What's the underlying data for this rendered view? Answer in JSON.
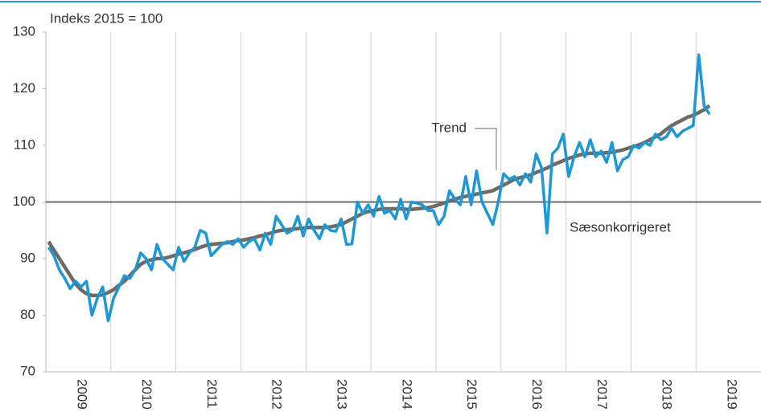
{
  "chart_data": {
    "type": "line",
    "subtitle": "Indeks 2015 = 100",
    "categories": [
      null,
      null,
      null,
      null,
      null,
      null,
      "2009",
      null,
      null,
      null,
      null,
      null,
      null,
      null,
      null,
      null,
      null,
      null,
      "2010",
      null,
      null,
      null,
      null,
      null,
      null,
      null,
      null,
      null,
      null,
      null,
      "2011",
      null,
      null,
      null,
      null,
      null,
      null,
      null,
      null,
      null,
      null,
      null,
      "2012",
      null,
      null,
      null,
      null,
      null,
      null,
      null,
      null,
      null,
      null,
      null,
      "2013",
      null,
      null,
      null,
      null,
      null,
      null,
      null,
      null,
      null,
      null,
      null,
      "2014",
      null,
      null,
      null,
      null,
      null,
      null,
      null,
      null,
      null,
      null,
      null,
      "2015",
      null,
      null,
      null,
      null,
      null,
      null,
      null,
      null,
      null,
      null,
      null,
      "2016",
      null,
      null,
      null,
      null,
      null,
      null,
      null,
      null,
      null,
      null,
      null,
      "2017",
      null,
      null,
      null,
      null,
      null,
      null,
      null,
      null,
      null,
      null,
      null,
      "2018",
      null,
      null,
      null,
      null,
      null,
      null,
      null,
      null,
      null,
      null,
      null,
      "2019",
      null,
      null,
      null,
      null,
      null
    ],
    "series": [
      {
        "name": "Trend",
        "color": "#6f6b64",
        "values": [
          93,
          91.5,
          90,
          88.5,
          87,
          85.5,
          84.5,
          83.8,
          83.5,
          83.5,
          83.6,
          84,
          84.5,
          85.3,
          86,
          87,
          88,
          89,
          89.5,
          89.8,
          90,
          90,
          90.2,
          90.5,
          90.8,
          91,
          91.3,
          91.6,
          92,
          92.3,
          92.5,
          92.6,
          92.7,
          92.8,
          93,
          93.2,
          93.3,
          93.5,
          93.7,
          94,
          94.2,
          94.5,
          94.8,
          95,
          95.1,
          95.2,
          95.3,
          95.4,
          95.5,
          95.5,
          95.5,
          95.5,
          95.6,
          95.8,
          96,
          96.5,
          97,
          97.5,
          98,
          98.3,
          98.5,
          98.7,
          98.8,
          98.8,
          98.8,
          98.8,
          98.7,
          98.7,
          98.8,
          98.9,
          99,
          99.2,
          99.5,
          99.8,
          100.2,
          100.5,
          100.8,
          101,
          101.2,
          101.4,
          101.6,
          101.8,
          102,
          102.5,
          103,
          103.5,
          104,
          104.3,
          104.5,
          104.8,
          105.2,
          105.6,
          106,
          106.5,
          106.9,
          107.3,
          107.7,
          108,
          108.3,
          108.5,
          108.6,
          108.6,
          108.6,
          108.7,
          108.8,
          109,
          109.2,
          109.5,
          109.8,
          110.1,
          110.5,
          111,
          111.5,
          112,
          112.8,
          113.5,
          114,
          114.5,
          115,
          115.3,
          115.8,
          116.3,
          117,
          null,
          null,
          null,
          null,
          null,
          null,
          null,
          null,
          null
        ]
      },
      {
        "name": "Sæsonkorrigeret",
        "color": "#1b98d5",
        "values": [
          92,
          90.5,
          88,
          86.5,
          84.7,
          86,
          85,
          86,
          80,
          83,
          85,
          79,
          83,
          85,
          87,
          86.5,
          88,
          91,
          90,
          88,
          92.5,
          90,
          89,
          88,
          92,
          89.5,
          91,
          92,
          95,
          94.5,
          90.5,
          91.5,
          92.5,
          93,
          92.5,
          93.5,
          92,
          93,
          93.5,
          91.5,
          94.5,
          92.5,
          97.5,
          96,
          94.5,
          95,
          97.5,
          94,
          97,
          95,
          93.5,
          96,
          95,
          94.8,
          97,
          92.5,
          92.6,
          100,
          98,
          99.5,
          97.5,
          101,
          98,
          98.5,
          97,
          100.5,
          97,
          100,
          99.8,
          99.5,
          98.5,
          98.5,
          96,
          97.5,
          102,
          100.5,
          99.5,
          104.5,
          99.5,
          105.5,
          100,
          98,
          96,
          100,
          105,
          104,
          104.5,
          103,
          105,
          103.5,
          108.5,
          106,
          94.5,
          108.5,
          109.5,
          112,
          104.5,
          108,
          110.5,
          108,
          111,
          108,
          109,
          107,
          110.5,
          105.5,
          107.5,
          108,
          110,
          109.5,
          110.5,
          110,
          112,
          111,
          111.5,
          113,
          111.5,
          112.5,
          113,
          113.5,
          126,
          117,
          115.5,
          null,
          null,
          null,
          null,
          null,
          null,
          null,
          null,
          null
        ]
      }
    ],
    "ylim": [
      70,
      130
    ],
    "yticks": [
      70,
      80,
      90,
      100,
      110,
      120,
      130
    ],
    "reference_line": 100,
    "grid": "x"
  }
}
